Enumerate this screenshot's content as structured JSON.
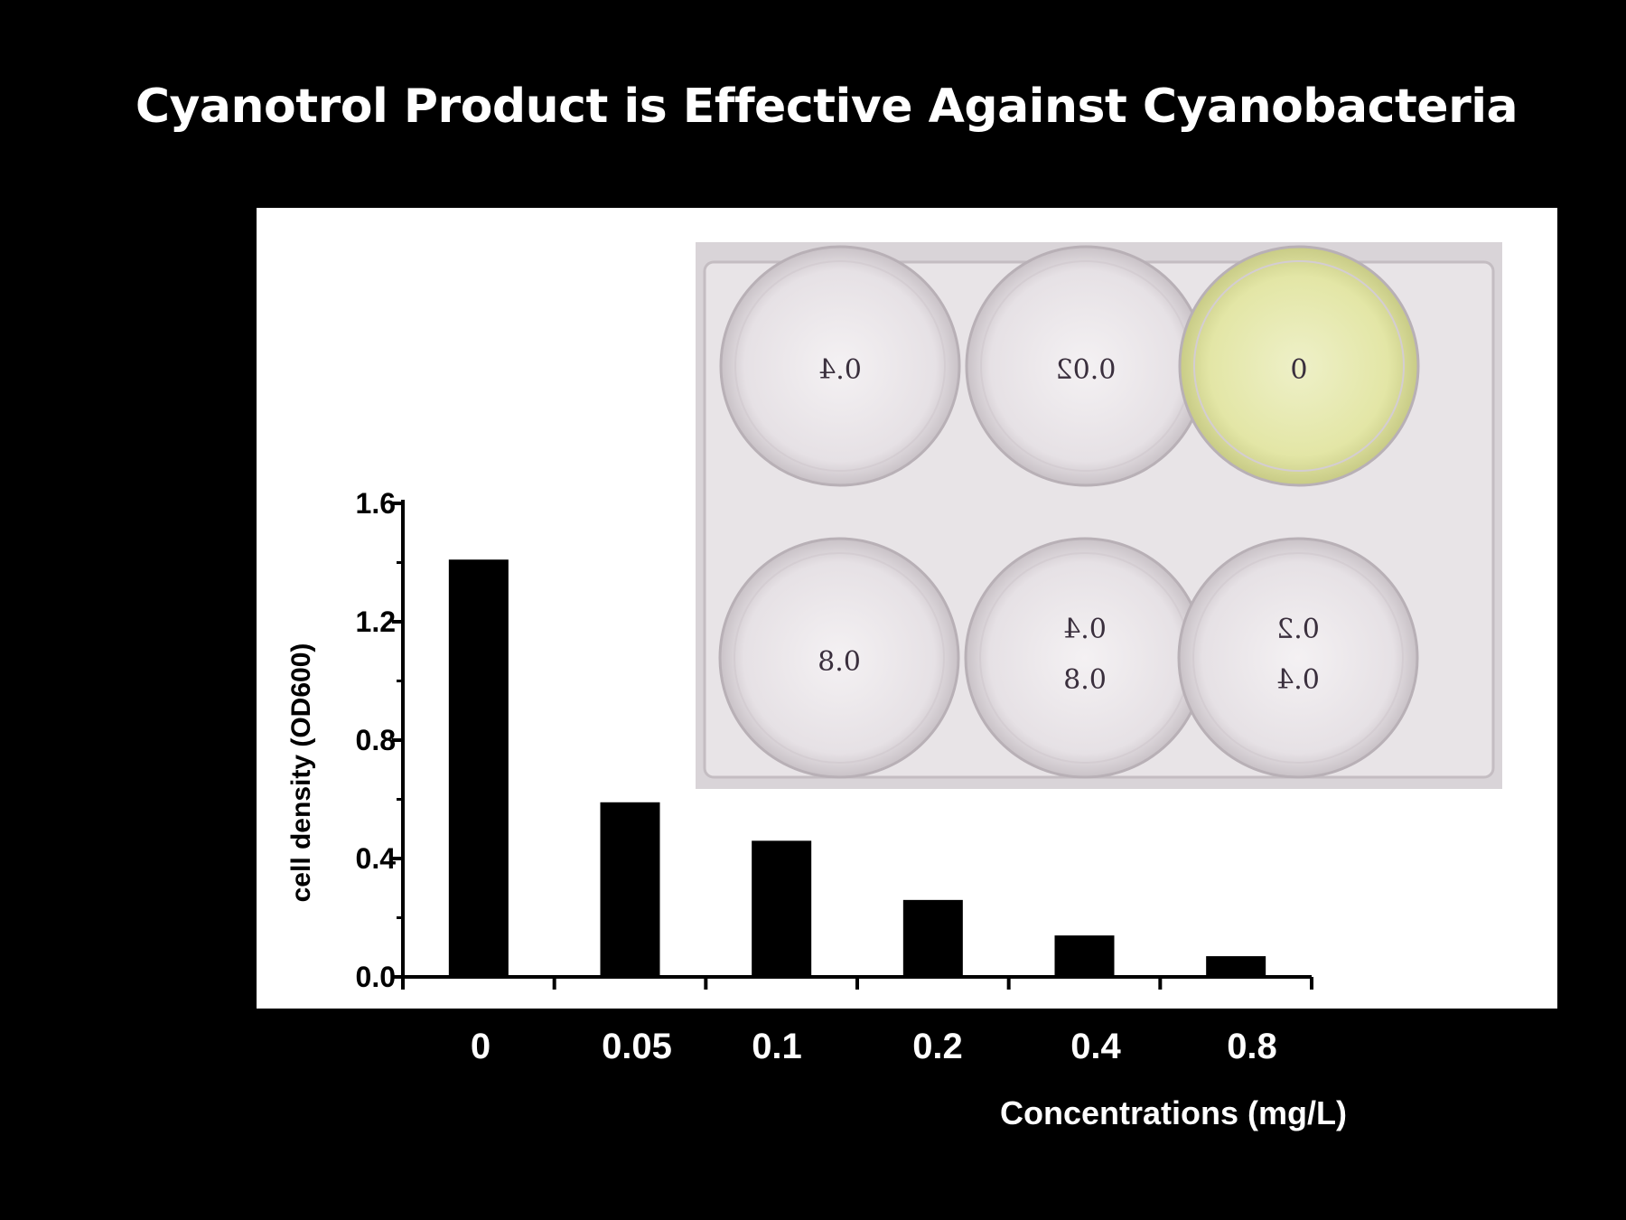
{
  "slide": {
    "title": "Cyanotrol Product is Effective Against Cyanobacteria"
  },
  "photo": {
    "description_icon": "six-well-plate-photo",
    "well_labels": [
      "0.4",
      "0.02",
      "0",
      "0.8",
      "0.4 0.8",
      "0.2 0.4"
    ]
  },
  "colors": {
    "background": "#000000",
    "plot_background": "#ffffff",
    "bars": "#000000",
    "light_text": "#ffffff",
    "dark_text": "#000000"
  },
  "chart_data": {
    "type": "bar",
    "categories": [
      "0",
      "0.05",
      "0.1",
      "0.2",
      "0.4",
      "0.8"
    ],
    "values": [
      1.41,
      0.59,
      0.46,
      0.26,
      0.14,
      0.07
    ],
    "xlabel": "Concentrations (mg/L)",
    "ylabel": "cell density (OD600)",
    "ylim": [
      0,
      1.6
    ],
    "yticks": [
      "0.0",
      "0.4",
      "0.8",
      "1.2",
      "1.6"
    ],
    "grid": false,
    "legend": "none"
  }
}
